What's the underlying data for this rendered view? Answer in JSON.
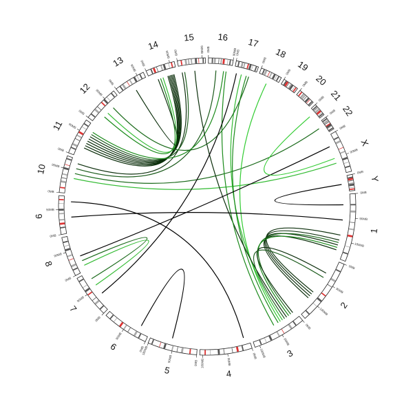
{
  "chart_data": {
    "type": "circos",
    "chromosomes": [
      {
        "name": "1",
        "length": 249
      },
      {
        "name": "2",
        "length": 243
      },
      {
        "name": "3",
        "length": 198
      },
      {
        "name": "4",
        "length": 191
      },
      {
        "name": "5",
        "length": 181
      },
      {
        "name": "6",
        "length": 171
      },
      {
        "name": "7",
        "length": 159
      },
      {
        "name": "8",
        "length": 146
      },
      {
        "name": "9",
        "length": 141
      },
      {
        "name": "10",
        "length": 136
      },
      {
        "name": "11",
        "length": 135
      },
      {
        "name": "12",
        "length": 133
      },
      {
        "name": "13",
        "length": 115
      },
      {
        "name": "14",
        "length": 107
      },
      {
        "name": "15",
        "length": 102
      },
      {
        "name": "16",
        "length": 90
      },
      {
        "name": "17",
        "length": 83
      },
      {
        "name": "18",
        "length": 80
      },
      {
        "name": "19",
        "length": 59
      },
      {
        "name": "20",
        "length": 64
      },
      {
        "name": "21",
        "length": 48
      },
      {
        "name": "22",
        "length": 51
      },
      {
        "name": "X",
        "length": 155
      },
      {
        "name": "Y",
        "length": 59
      }
    ],
    "ticks": [
      {
        "value": 0,
        "label": "0MB"
      },
      {
        "value": 90,
        "label": "90MB"
      },
      {
        "value": 180,
        "label": "180MB"
      }
    ],
    "links": [
      {
        "source": [
          "11",
          40
        ],
        "target": [
          "14",
          70
        ],
        "color": "#0b2e0b"
      },
      {
        "source": [
          "11",
          50
        ],
        "target": [
          "14",
          75
        ],
        "color": "#0b2e0b"
      },
      {
        "source": [
          "11",
          60
        ],
        "target": [
          "14",
          80
        ],
        "color": "#0b2e0b"
      },
      {
        "source": [
          "11",
          70
        ],
        "target": [
          "14",
          85
        ],
        "color": "#0b2e0b"
      },
      {
        "source": [
          "11",
          80
        ],
        "target": [
          "14",
          90
        ],
        "color": "#0b2e0b"
      },
      {
        "source": [
          "11",
          90
        ],
        "target": [
          "14",
          95
        ],
        "color": "#0b2e0b"
      },
      {
        "source": [
          "10",
          120
        ],
        "target": [
          "15",
          10
        ],
        "color": "#0b2e0b"
      },
      {
        "source": [
          "11",
          100
        ],
        "target": [
          "15",
          20
        ],
        "color": "#1a5a1a"
      },
      {
        "source": [
          "10",
          100
        ],
        "target": [
          "16",
          30
        ],
        "color": "#1a5a1a"
      },
      {
        "source": [
          "11",
          110
        ],
        "target": [
          "16",
          60
        ],
        "color": "#1a8a1a"
      },
      {
        "source": [
          "12",
          40
        ],
        "target": [
          "14",
          40
        ],
        "color": "#1a8a1a"
      },
      {
        "source": [
          "12",
          60
        ],
        "target": [
          "14",
          50
        ],
        "color": "#33bb33"
      },
      {
        "source": [
          "13",
          60
        ],
        "target": [
          "14",
          30
        ],
        "color": "#0b2e0b"
      },
      {
        "source": [
          "10",
          60
        ],
        "target": [
          "X",
          110
        ],
        "color": "#33bb33"
      },
      {
        "source": [
          "10",
          80
        ],
        "target": [
          "22",
          20
        ],
        "color": "#1a6a1a"
      },
      {
        "source": [
          "17",
          30
        ],
        "target": [
          "3",
          60
        ],
        "color": "#33bb33"
      },
      {
        "source": [
          "17",
          50
        ],
        "target": [
          "3",
          80
        ],
        "color": "#1a8a1a"
      },
      {
        "source": [
          "18",
          40
        ],
        "target": [
          "3",
          70
        ],
        "color": "#33cc33"
      },
      {
        "source": [
          "17",
          60
        ],
        "target": [
          "12",
          90
        ],
        "color": "#1a6a1a"
      },
      {
        "source": [
          "15",
          60
        ],
        "target": [
          "3",
          40
        ],
        "color": "#0b2e0b"
      },
      {
        "source": [
          "16",
          70
        ],
        "target": [
          "3",
          100
        ],
        "color": "#1a8a1a"
      },
      {
        "source": [
          "1",
          160
        ],
        "target": [
          "2",
          150
        ],
        "color": "#0b2e0b"
      },
      {
        "source": [
          "1",
          180
        ],
        "target": [
          "2",
          160
        ],
        "color": "#0b2e0b"
      },
      {
        "source": [
          "1",
          200
        ],
        "target": [
          "2",
          170
        ],
        "color": "#0b2e0b"
      },
      {
        "source": [
          "1",
          220
        ],
        "target": [
          "2",
          180
        ],
        "color": "#0b2e0b"
      },
      {
        "source": [
          "1",
          190
        ],
        "target": [
          "3",
          20
        ],
        "color": "#1a6a1a"
      },
      {
        "source": [
          "1",
          210
        ],
        "target": [
          "3",
          30
        ],
        "color": "#1a8a1a"
      },
      {
        "source": [
          "2",
          60
        ],
        "target": [
          "3",
          10
        ],
        "color": "#0b2e0b"
      },
      {
        "source": [
          "2",
          80
        ],
        "target": [
          "3",
          50
        ],
        "color": "#1a5a1a"
      },
      {
        "source": [
          "9",
          60
        ],
        "target": [
          "1",
          100
        ],
        "color": "#000000"
      },
      {
        "source": [
          "8",
          60
        ],
        "target": [
          "X",
          40
        ],
        "color": "#000000"
      },
      {
        "source": [
          "9",
          120
        ],
        "target": [
          "4",
          20
        ],
        "color": "#000000"
      },
      {
        "source": [
          "8",
          20
        ],
        "target": [
          "7",
          100
        ],
        "color": "#33bb33"
      },
      {
        "source": [
          "8",
          40
        ],
        "target": [
          "7",
          130
        ],
        "color": "#1a6a1a"
      },
      {
        "source": [
          "6",
          40
        ],
        "target": [
          "5",
          100
        ],
        "color": "#000000"
      },
      {
        "source": [
          "7",
          60
        ],
        "target": [
          "17",
          10
        ],
        "color": "#000000"
      },
      {
        "source": [
          "Y",
          30
        ],
        "target": [
          "1",
          40
        ],
        "color": "#000000"
      },
      {
        "source": [
          "X",
          90
        ],
        "target": [
          "21",
          20
        ],
        "color": "#33cc33"
      }
    ]
  }
}
